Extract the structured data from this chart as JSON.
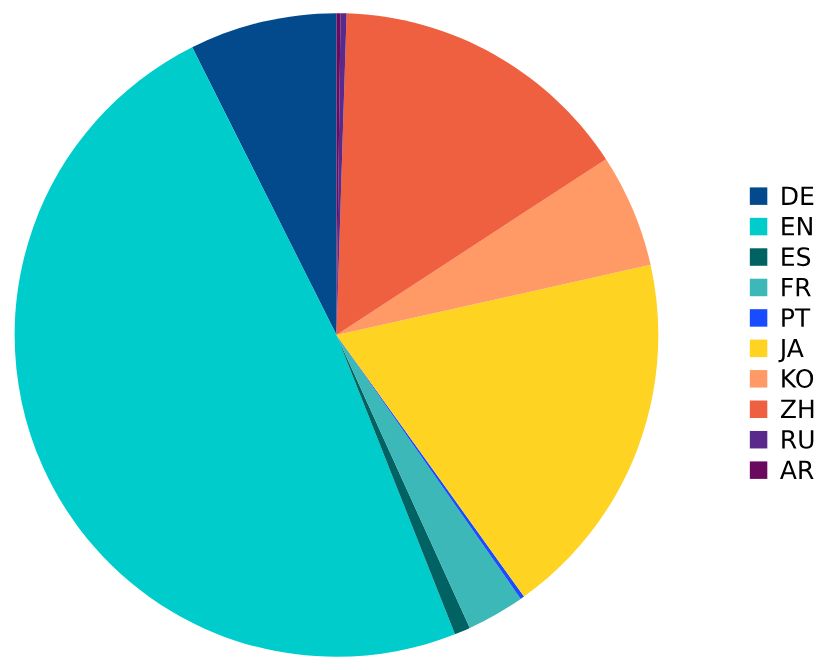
{
  "chart_data": {
    "type": "pie",
    "categories": [
      "DE",
      "EN",
      "ES",
      "FR",
      "PT",
      "JA",
      "KO",
      "ZH",
      "RU",
      "AR"
    ],
    "values": [
      7.4,
      48.6,
      0.8,
      2.9,
      0.2,
      18.6,
      5.7,
      15.3,
      0.3,
      0.2
    ],
    "colors": [
      "#034a8c",
      "#00cccc",
      "#006262",
      "#3cb8b8",
      "#1a4cff",
      "#ffd322",
      "#ff9966",
      "#ef6040",
      "#5a2a8a",
      "#6a0a5e"
    ],
    "legend": "right"
  }
}
